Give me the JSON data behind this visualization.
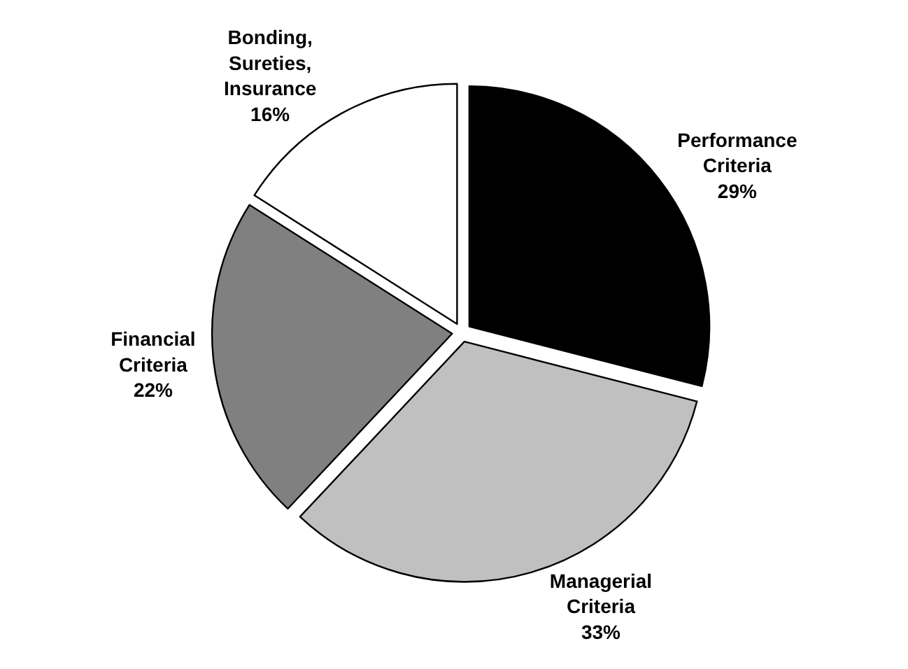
{
  "chart_data": {
    "type": "pie",
    "categories": [
      "Performance Criteria",
      "Managerial Criteria",
      "Financial Criteria",
      "Bonding, Sureties, Insurance"
    ],
    "values": [
      29,
      33,
      22,
      16
    ],
    "colors": [
      "#000000",
      "#c0c0c0",
      "#808080",
      "#ffffff"
    ],
    "value_labels": [
      "29%",
      "33%",
      "22%",
      "16%"
    ],
    "legend": false
  }
}
